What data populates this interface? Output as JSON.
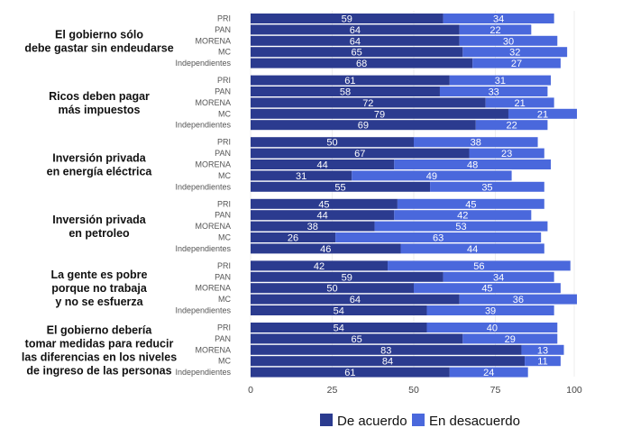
{
  "chart_data": {
    "type": "bar",
    "orientation": "horizontal",
    "stacked": true,
    "title": "",
    "xlabel": "",
    "ylabel": "",
    "xlim": [
      0,
      100
    ],
    "x_ticks": [
      "0",
      "25",
      "50",
      "75",
      "100"
    ],
    "grid": true,
    "legend_position": "bottom",
    "parties": [
      "PRI",
      "PAN",
      "MORENA",
      "MC",
      "Independientes"
    ],
    "colors": {
      "de_acuerdo": "#2b3b8f",
      "en_desacuerdo": "#4a68dc"
    },
    "legend": [
      {
        "key": "de_acuerdo",
        "label": "De acuerdo",
        "color": "#2b3b8f"
      },
      {
        "key": "en_desacuerdo",
        "label": "En desacuerdo",
        "color": "#4a68dc"
      }
    ],
    "groups": [
      {
        "title_lines": [
          "El gobierno sólo",
          "debe gastar sin endeudarse"
        ],
        "de_acuerdo": [
          59,
          64,
          64,
          65,
          68
        ],
        "en_desacuerdo": [
          34,
          22,
          30,
          32,
          27
        ]
      },
      {
        "title_lines": [
          "Ricos deben pagar",
          "más impuestos"
        ],
        "de_acuerdo": [
          61,
          58,
          72,
          79,
          69
        ],
        "en_desacuerdo": [
          31,
          33,
          21,
          21,
          22
        ]
      },
      {
        "title_lines": [
          "Inversión privada",
          "en energía eléctrica"
        ],
        "de_acuerdo": [
          50,
          67,
          44,
          31,
          55
        ],
        "en_desacuerdo": [
          38,
          23,
          48,
          49,
          35
        ]
      },
      {
        "title_lines": [
          "Inversión privada",
          "en petroleo"
        ],
        "de_acuerdo": [
          45,
          44,
          38,
          26,
          46
        ],
        "en_desacuerdo": [
          45,
          42,
          53,
          63,
          44
        ]
      },
      {
        "title_lines": [
          "La gente es pobre",
          "porque no trabaja",
          "y no se esfuerza"
        ],
        "de_acuerdo": [
          42,
          59,
          50,
          64,
          54
        ],
        "en_desacuerdo": [
          56,
          34,
          45,
          36,
          39
        ]
      },
      {
        "title_lines": [
          "El gobierno debería",
          "tomar medidas para reducir",
          "las diferencias en los niveles",
          "de ingreso de las personas"
        ],
        "de_acuerdo": [
          54,
          65,
          83,
          84,
          61
        ],
        "en_desacuerdo": [
          40,
          29,
          13,
          11,
          24
        ]
      }
    ]
  }
}
